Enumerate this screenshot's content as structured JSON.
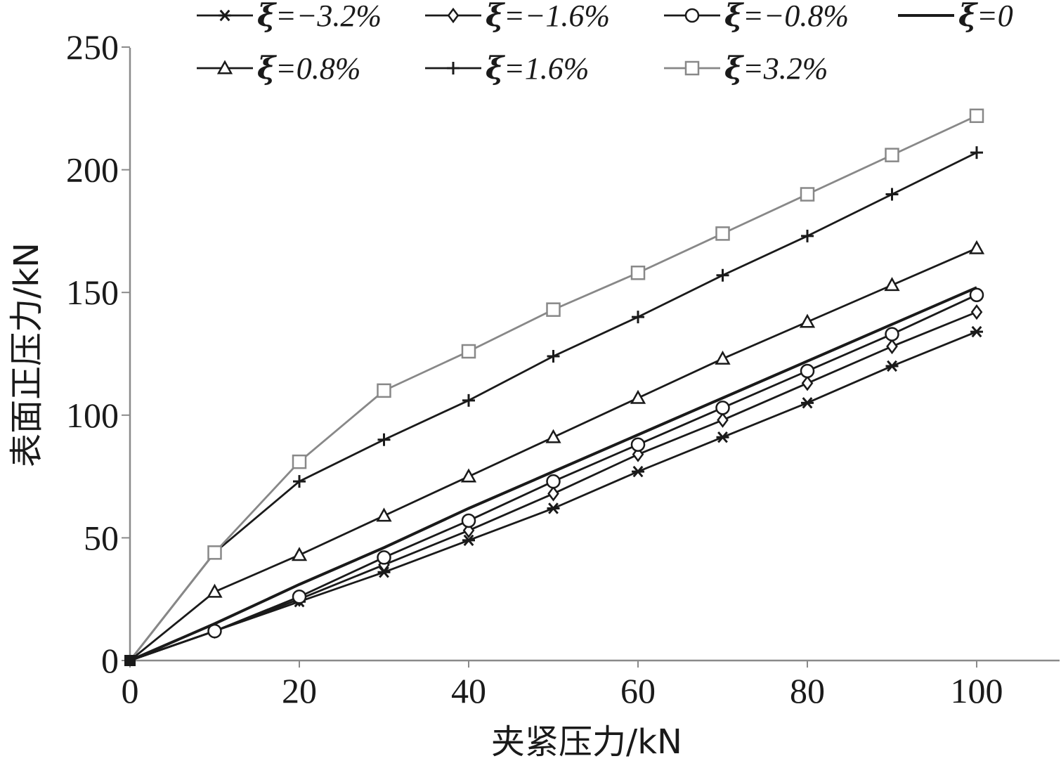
{
  "chart_data": {
    "type": "line",
    "xlabel": "夹紧压力/kN",
    "ylabel": "表面正压力/kN",
    "xlim": [
      0,
      110
    ],
    "ylim": [
      0,
      250
    ],
    "x_ticks": [
      0,
      20,
      40,
      60,
      80,
      100
    ],
    "y_ticks": [
      0,
      50,
      100,
      150,
      200,
      250
    ],
    "grid": false,
    "legend_position": "top",
    "x": [
      0,
      10,
      20,
      30,
      40,
      50,
      60,
      70,
      80,
      90,
      100
    ],
    "series": [
      {
        "name": "ξ=−3.2%",
        "legend_symbol": "ξ",
        "legend_value": "=−3.2%",
        "marker": "asterisk",
        "color": "#1a1a1a",
        "values": [
          0,
          12,
          24,
          36,
          49,
          62,
          77,
          91,
          105,
          120,
          134
        ]
      },
      {
        "name": "ξ=−1.6%",
        "legend_symbol": "ξ",
        "legend_value": "=−1.6%",
        "marker": "diamond",
        "color": "#1a1a1a",
        "values": [
          0,
          12,
          25,
          39,
          53,
          68,
          84,
          98,
          113,
          128,
          142
        ]
      },
      {
        "name": "ξ=−0.8%",
        "legend_symbol": "ξ",
        "legend_value": "=−0.8%",
        "marker": "circle",
        "color": "#1a1a1a",
        "values": [
          0,
          12,
          26,
          42,
          57,
          73,
          88,
          103,
          118,
          133,
          149
        ]
      },
      {
        "name": "ξ=0",
        "legend_symbol": "ξ",
        "legend_value": "=0",
        "marker": "none",
        "color": "#1a1a1a",
        "values": [
          0,
          15,
          31,
          46,
          62,
          77,
          92,
          107,
          122,
          137,
          152
        ]
      },
      {
        "name": "ξ=0.8%",
        "legend_symbol": "ξ",
        "legend_value": "=0.8%",
        "marker": "triangle",
        "color": "#1a1a1a",
        "values": [
          0,
          28,
          43,
          59,
          75,
          91,
          107,
          123,
          138,
          153,
          168
        ]
      },
      {
        "name": "ξ=1.6%",
        "legend_symbol": "ξ",
        "legend_value": "=1.6%",
        "marker": "plus",
        "color": "#1a1a1a",
        "values": [
          0,
          44,
          73,
          90,
          106,
          124,
          140,
          157,
          173,
          190,
          207
        ]
      },
      {
        "name": "ξ=3.2%",
        "legend_symbol": "ξ",
        "legend_value": "=3.2%",
        "marker": "square",
        "color": "#888888",
        "values": [
          0,
          44,
          81,
          110,
          126,
          143,
          158,
          174,
          190,
          206,
          222
        ]
      }
    ]
  }
}
